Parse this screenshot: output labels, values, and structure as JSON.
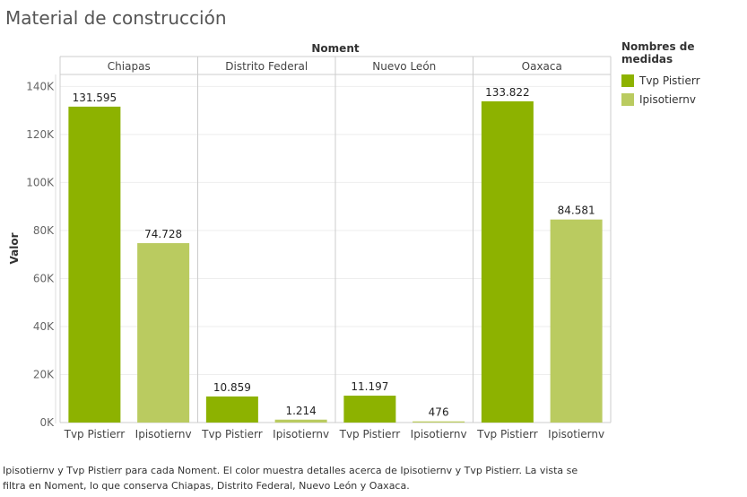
{
  "title": "Material de construcción",
  "caption": "Ipisotiernv y Tvp Pistierr para cada Noment.  El color muestra detalles acerca de Ipisotiernv y Tvp Pistierr. La vista se filtra en Noment, lo que conserva Chiapas, Distrito Federal, Nuevo León y Oaxaca.",
  "legend": {
    "title": "Nombres de medidas",
    "items": [
      {
        "label": "Tvp Pistierr",
        "color": "#8db200"
      },
      {
        "label": "Ipisotiernv",
        "color": "#bacb60"
      }
    ]
  },
  "chart_data": {
    "type": "bar",
    "column_header": "Noment",
    "ylabel": "Valor",
    "ylim": [
      0,
      145000
    ],
    "yticks": [
      0,
      20000,
      40000,
      60000,
      80000,
      100000,
      120000,
      140000
    ],
    "ytick_labels": [
      "0K",
      "20K",
      "40K",
      "60K",
      "80K",
      "100K",
      "120K",
      "140K"
    ],
    "grid": true,
    "legend_position": "right",
    "panels": [
      {
        "name": "Chiapas",
        "bars": [
          {
            "measure": "Tvp Pistierr",
            "value": 131595,
            "label": "131.595"
          },
          {
            "measure": "Ipisotiernv",
            "value": 74728,
            "label": "74.728"
          }
        ]
      },
      {
        "name": "Distrito Federal",
        "bars": [
          {
            "measure": "Tvp Pistierr",
            "value": 10859,
            "label": "10.859"
          },
          {
            "measure": "Ipisotiernv",
            "value": 1214,
            "label": "1.214"
          }
        ]
      },
      {
        "name": "Nuevo León",
        "bars": [
          {
            "measure": "Tvp Pistierr",
            "value": 11197,
            "label": "11.197"
          },
          {
            "measure": "Ipisotiernv",
            "value": 476,
            "label": "476"
          }
        ]
      },
      {
        "name": "Oaxaca",
        "bars": [
          {
            "measure": "Tvp Pistierr",
            "value": 133822,
            "label": "133.822"
          },
          {
            "measure": "Ipisotiernv",
            "value": 84581,
            "label": "84.581"
          }
        ]
      }
    ]
  }
}
